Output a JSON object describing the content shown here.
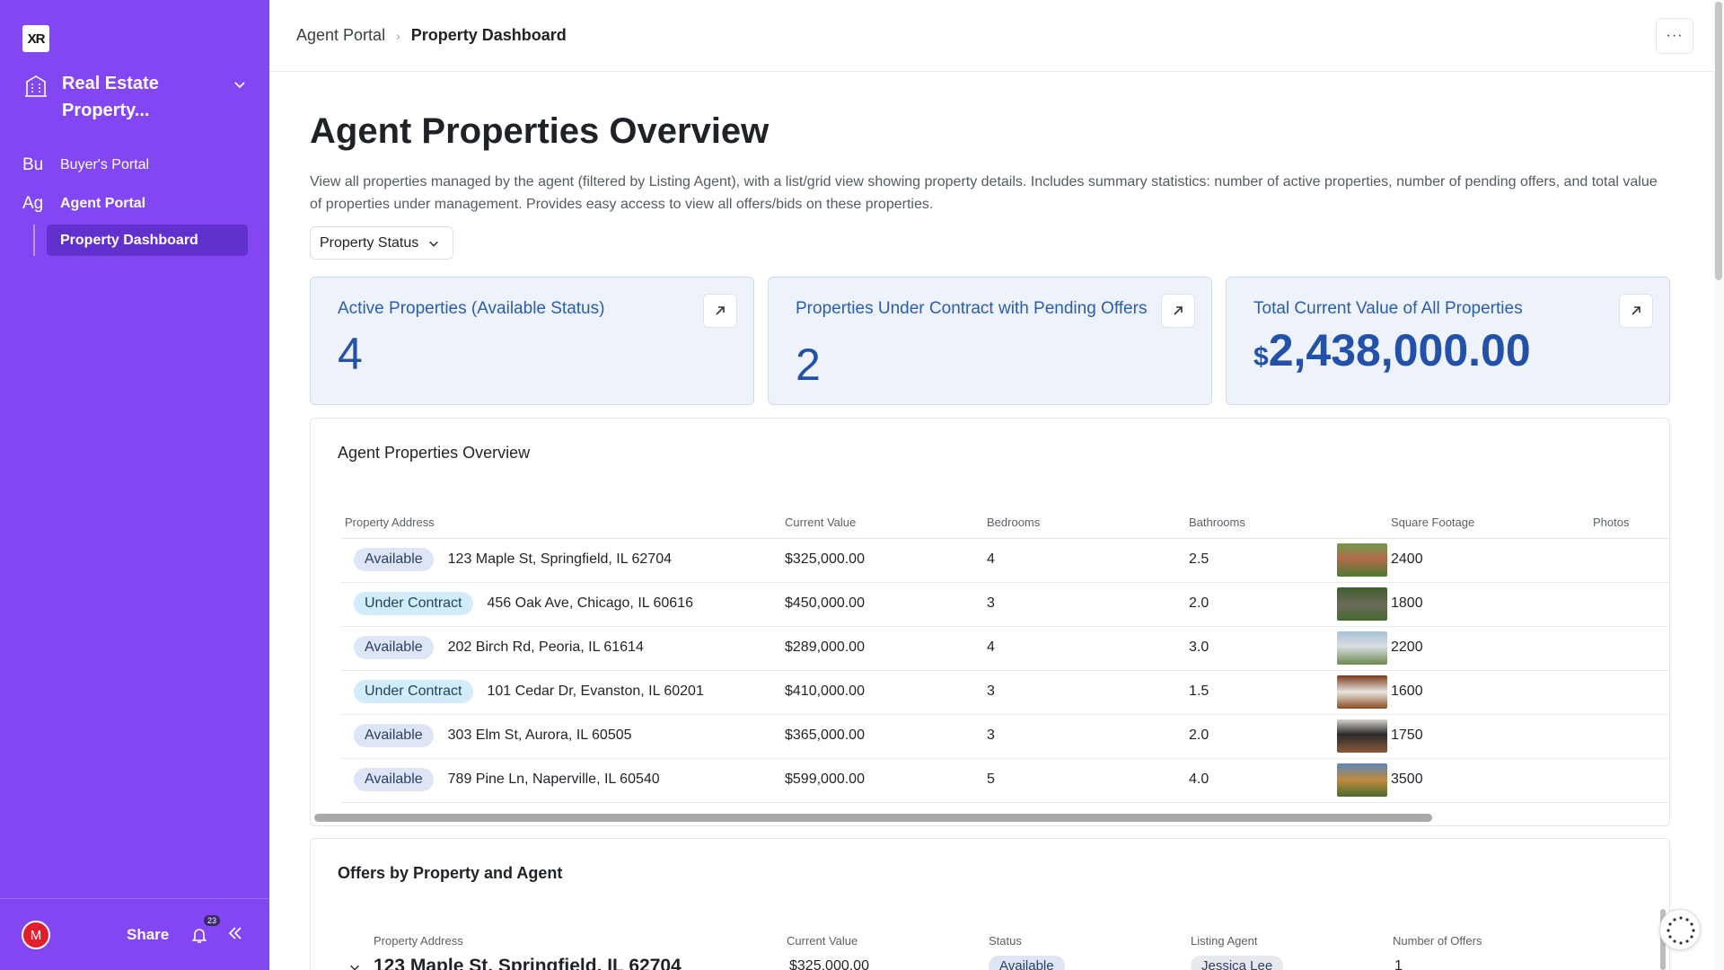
{
  "sidebar": {
    "logo": "XR",
    "app_name": "Real Estate Property...",
    "nav": [
      {
        "abbr": "Bu",
        "label": "Buyer's Portal"
      },
      {
        "abbr": "Ag",
        "label": "Agent Portal"
      }
    ],
    "sub_item": "Property Dashboard",
    "avatar_initial": "M",
    "share_label": "Share",
    "notification_count": "23",
    "accent_color": "#8247f2"
  },
  "header": {
    "breadcrumb_root": "Agent Portal",
    "breadcrumb_current": "Property Dashboard",
    "more_label": "···"
  },
  "page": {
    "title": "Agent Properties Overview",
    "description": "View all properties managed by the agent (filtered by Listing Agent), with a list/grid view showing property details. Includes summary statistics: number of active properties, number of pending offers, and total value of properties under management. Provides easy access to view all offers/bids on these properties.",
    "filter_label": "Property Status"
  },
  "stats": [
    {
      "label": "Active Properties (Available Status)",
      "value": "4"
    },
    {
      "label": "Properties Under Contract with Pending Offers",
      "value": "2"
    },
    {
      "label": "Total Current Value of All Properties",
      "currency": "$",
      "value": "2,438,000.00"
    }
  ],
  "properties_table": {
    "title": "Agent Properties Overview",
    "columns": [
      "Property Address",
      "Current Value",
      "Bedrooms",
      "Bathrooms",
      "Square Footage",
      "Photos"
    ],
    "rows": [
      {
        "status": "Available",
        "address": "123 Maple St, Springfield, IL 62704",
        "value": "$325,000.00",
        "bedrooms": "4",
        "bathrooms": "2.5",
        "sqft": "2400"
      },
      {
        "status": "Under Contract",
        "address": "456 Oak Ave, Chicago, IL 60616",
        "value": "$450,000.00",
        "bedrooms": "3",
        "bathrooms": "2.0",
        "sqft": "1800"
      },
      {
        "status": "Available",
        "address": "202 Birch Rd, Peoria, IL 61614",
        "value": "$289,000.00",
        "bedrooms": "4",
        "bathrooms": "3.0",
        "sqft": "2200"
      },
      {
        "status": "Under Contract",
        "address": "101 Cedar Dr, Evanston, IL 60201",
        "value": "$410,000.00",
        "bedrooms": "3",
        "bathrooms": "1.5",
        "sqft": "1600"
      },
      {
        "status": "Available",
        "address": "303 Elm St, Aurora, IL 60505",
        "value": "$365,000.00",
        "bedrooms": "3",
        "bathrooms": "2.0",
        "sqft": "1750"
      },
      {
        "status": "Available",
        "address": "789 Pine Ln, Naperville, IL 60540",
        "value": "$599,000.00",
        "bedrooms": "5",
        "bathrooms": "4.0",
        "sqft": "3500"
      }
    ]
  },
  "offers_table": {
    "title": "Offers by Property and Agent",
    "columns": [
      "Property Address",
      "Current Value",
      "Status",
      "Listing Agent",
      "Number of Offers"
    ],
    "first_row": {
      "address": "123 Maple St, Springfield, IL 62704",
      "value": "$325,000.00",
      "status": "Available",
      "agent": "Jessica Lee",
      "offers": "1"
    }
  }
}
